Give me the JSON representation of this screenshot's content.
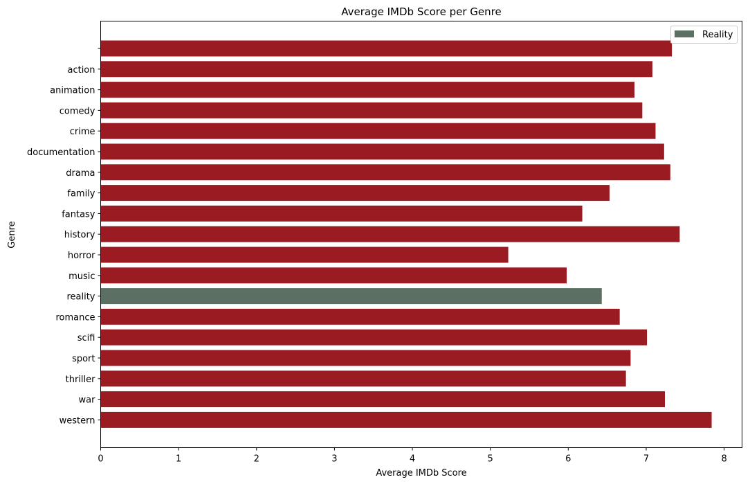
{
  "chart_data": {
    "type": "bar",
    "orientation": "horizontal",
    "title": "Average IMDb Score per Genre",
    "xlabel": "Average IMDb Score",
    "ylabel": "Genre",
    "xlim": [
      0,
      8.23
    ],
    "xticks": [
      0,
      1,
      2,
      3,
      4,
      5,
      6,
      7,
      8
    ],
    "grid": false,
    "legend": {
      "position": "top-right",
      "entries": [
        {
          "label": "Reality",
          "color": "#5b7062"
        }
      ]
    },
    "colors": {
      "default": "#9b1b23",
      "highlight": "#5b7062"
    },
    "categories": [
      "",
      "action",
      "animation",
      "comedy",
      "crime",
      "documentation",
      "drama",
      "family",
      "fantasy",
      "history",
      "horror",
      "music",
      "reality",
      "romance",
      "scifi",
      "sport",
      "thriller",
      "war",
      "western"
    ],
    "values": [
      7.33,
      7.08,
      6.85,
      6.95,
      7.12,
      7.23,
      7.31,
      6.53,
      6.18,
      7.43,
      5.23,
      5.98,
      6.43,
      6.66,
      7.01,
      6.8,
      6.74,
      7.24,
      7.84
    ],
    "highlighted_category": "reality"
  }
}
